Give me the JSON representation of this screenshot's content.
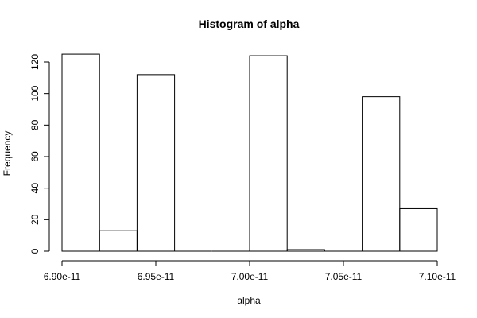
{
  "chart_data": {
    "type": "bar",
    "title": "Histogram of alpha",
    "xlabel": "alpha",
    "ylabel": "Frequency",
    "bins": [
      {
        "x0": 6.9e-11,
        "x1": 6.92e-11,
        "count": 125
      },
      {
        "x0": 6.92e-11,
        "x1": 6.94e-11,
        "count": 13
      },
      {
        "x0": 6.94e-11,
        "x1": 6.96e-11,
        "count": 112
      },
      {
        "x0": 6.96e-11,
        "x1": 6.98e-11,
        "count": 0
      },
      {
        "x0": 6.98e-11,
        "x1": 7e-11,
        "count": 0
      },
      {
        "x0": 7e-11,
        "x1": 7.02e-11,
        "count": 124
      },
      {
        "x0": 7.02e-11,
        "x1": 7.04e-11,
        "count": 1
      },
      {
        "x0": 7.04e-11,
        "x1": 7.06e-11,
        "count": 0
      },
      {
        "x0": 7.06e-11,
        "x1": 7.08e-11,
        "count": 98
      },
      {
        "x0": 7.08e-11,
        "x1": 7.1e-11,
        "count": 27
      }
    ],
    "xlim": [
      6.9e-11,
      7.1e-11
    ],
    "ylim": [
      0,
      130
    ],
    "xticks": [
      6.9e-11,
      6.95e-11,
      7e-11,
      7.05e-11,
      7.1e-11
    ],
    "xtick_labels": [
      "6.90e-11",
      "6.95e-11",
      "7.00e-11",
      "7.05e-11",
      "7.10e-11"
    ],
    "yticks": [
      0,
      20,
      40,
      60,
      80,
      100,
      120
    ],
    "ytick_labels": [
      "0",
      "20",
      "40",
      "60",
      "80",
      "100",
      "120"
    ],
    "grid": false
  }
}
